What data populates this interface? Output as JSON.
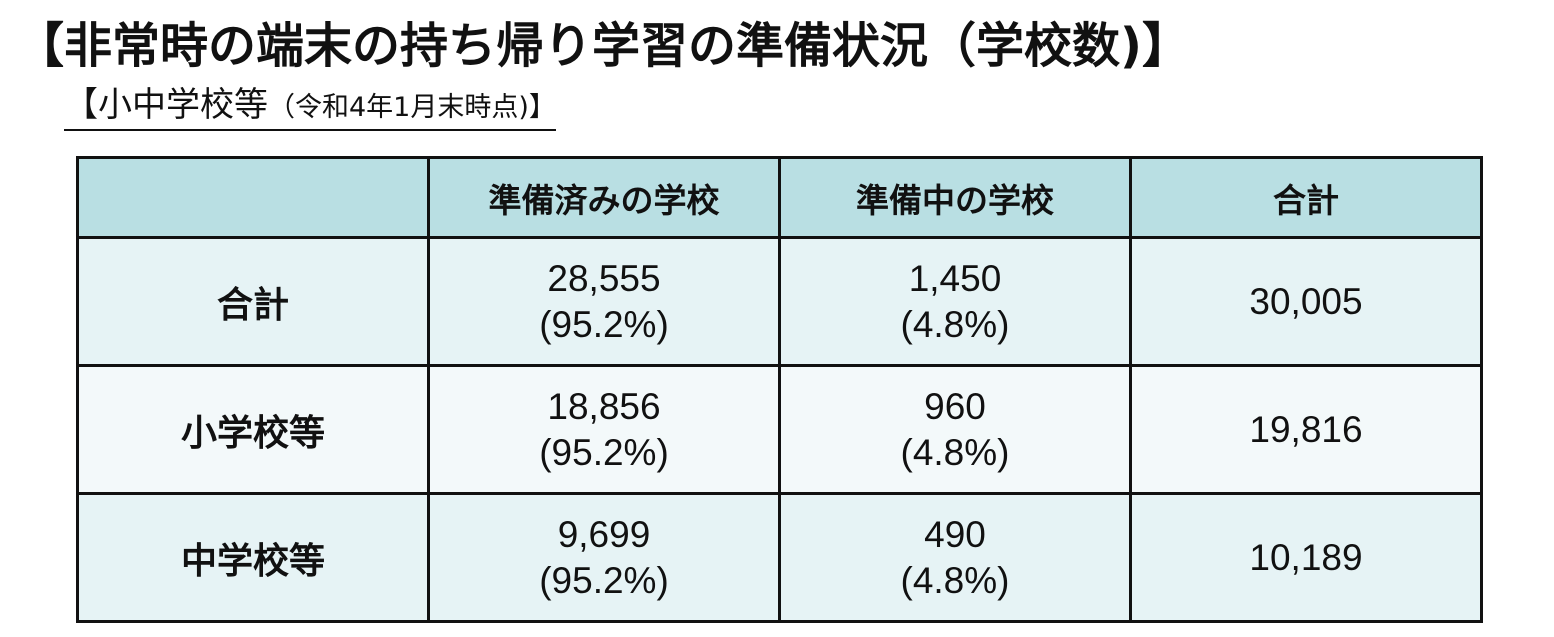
{
  "title": "【非常時の端末の持ち帰り学習の準備状況（学校数)】",
  "subtitle": {
    "main": "【小中学校等",
    "date": "（令和4年1月末時点)】"
  },
  "table": {
    "headers": [
      "",
      "準備済みの学校",
      "準備中の学校",
      "合計"
    ],
    "rows": [
      {
        "label": "合計",
        "ready": "28,555",
        "ready_pct": "(95.2%)",
        "preparing": "1,450",
        "preparing_pct": "(4.8%)",
        "total": "30,005"
      },
      {
        "label": "小学校等",
        "ready": "18,856",
        "ready_pct": "(95.2%)",
        "preparing": "960",
        "preparing_pct": "(4.8%)",
        "total": "19,816"
      },
      {
        "label": "中学校等",
        "ready": "9,699",
        "ready_pct": "(95.2%)",
        "preparing": "490",
        "preparing_pct": "(4.8%)",
        "total": "10,189"
      }
    ]
  },
  "colors": {
    "header_bg": "#b9dfe3",
    "row_bg_a": "#e6f3f5",
    "row_bg_b": "#f3f9fa",
    "border": "#111111"
  }
}
